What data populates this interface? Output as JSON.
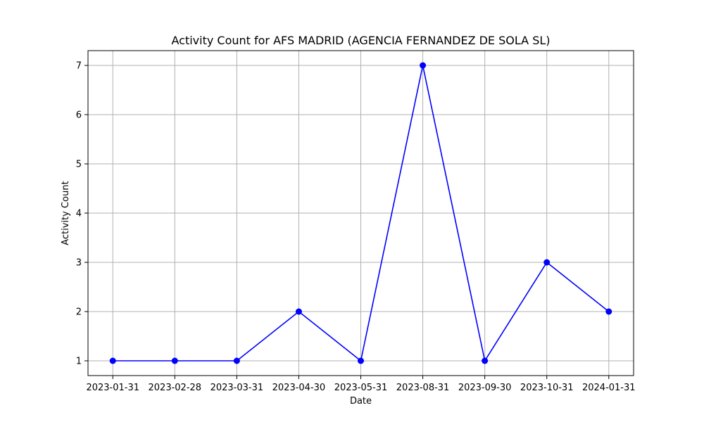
{
  "chart_data": {
    "type": "line",
    "title": "Activity Count for AFS MADRID (AGENCIA FERNANDEZ DE SOLA SL)",
    "xlabel": "Date",
    "ylabel": "Activity Count",
    "x": [
      "2023-01-31",
      "2023-02-28",
      "2023-03-31",
      "2023-04-30",
      "2023-05-31",
      "2023-08-31",
      "2023-09-30",
      "2023-10-31",
      "2024-01-31"
    ],
    "series": [
      {
        "values": [
          1,
          1,
          1,
          2,
          1,
          7,
          1,
          3,
          2
        ],
        "color": "#0000ff",
        "marker": "circle"
      }
    ],
    "x_axis_type": "category",
    "ylim": [
      0.7,
      7.3
    ],
    "yticks": [
      1,
      2,
      3,
      4,
      5,
      6,
      7
    ],
    "grid": true,
    "legend": false
  }
}
